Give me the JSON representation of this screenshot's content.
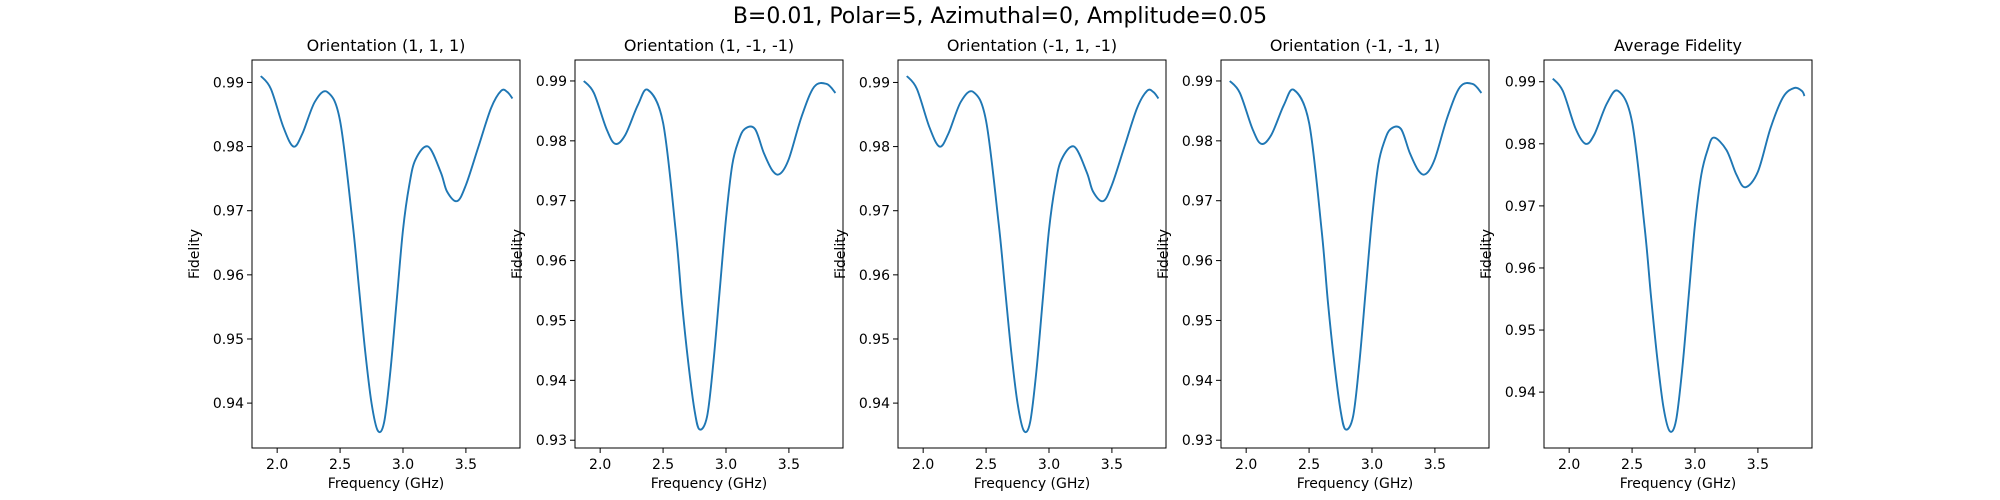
{
  "figure": {
    "suptitle": "B=0.01, Polar=5, Azimuthal=0, Amplitude=0.05",
    "line_color": "#1f77b4"
  },
  "chart_data": [
    {
      "type": "line",
      "title": "Orientation (1, 1, 1)",
      "xlabel": "Frequency (GHz)",
      "ylabel": "Fidelity",
      "xlim": [
        1.8,
        3.93
      ],
      "ylim": [
        0.933,
        0.9935
      ],
      "xticks": [
        "2.0",
        "2.5",
        "3.0",
        "3.5"
      ],
      "yticks": [
        "0.94",
        "0.95",
        "0.96",
        "0.97",
        "0.98",
        "0.99"
      ],
      "series": [
        {
          "x": [
            1.87,
            1.95,
            2.05,
            2.13,
            2.2,
            2.3,
            2.4,
            2.5,
            2.6,
            2.65,
            2.7,
            2.75,
            2.8,
            2.85,
            2.9,
            2.95,
            3.0,
            3.05,
            3.1,
            3.2,
            3.3,
            3.35,
            3.43,
            3.5,
            3.6,
            3.7,
            3.78,
            3.83,
            3.87
          ],
          "y": [
            0.991,
            0.989,
            0.983,
            0.98,
            0.982,
            0.987,
            0.9885,
            0.984,
            0.968,
            0.958,
            0.948,
            0.94,
            0.9357,
            0.937,
            0.945,
            0.956,
            0.967,
            0.974,
            0.978,
            0.98,
            0.976,
            0.973,
            0.9715,
            0.974,
            0.98,
            0.986,
            0.9887,
            0.9885,
            0.9875
          ]
        }
      ]
    },
    {
      "type": "line",
      "title": "Orientation (1, -1, -1)",
      "xlabel": "Frequency (GHz)",
      "ylabel": "Fidelity",
      "xlim": [
        1.8,
        3.93
      ],
      "ylim": [
        0.9287,
        0.9935
      ],
      "xticks": [
        "2.0",
        "2.5",
        "3.0",
        "3.5"
      ],
      "yticks": [
        "0.93",
        "0.94",
        "0.95",
        "0.96",
        "0.97",
        "0.98",
        "0.99"
      ],
      "series": [
        {
          "x": [
            1.87,
            1.95,
            2.05,
            2.12,
            2.2,
            2.3,
            2.38,
            2.5,
            2.6,
            2.65,
            2.7,
            2.75,
            2.79,
            2.85,
            2.9,
            2.95,
            3.0,
            3.05,
            3.1,
            3.15,
            3.23,
            3.3,
            3.37,
            3.43,
            3.5,
            3.6,
            3.7,
            3.8,
            3.87
          ],
          "y": [
            0.99,
            0.988,
            0.982,
            0.9795,
            0.981,
            0.986,
            0.9885,
            0.983,
            0.965,
            0.953,
            0.943,
            0.935,
            0.9318,
            0.934,
            0.943,
            0.955,
            0.967,
            0.976,
            0.98,
            0.982,
            0.982,
            0.978,
            0.975,
            0.9745,
            0.977,
            0.984,
            0.989,
            0.9895,
            0.988
          ]
        }
      ]
    },
    {
      "type": "line",
      "title": "Orientation (-1, 1, -1)",
      "xlabel": "Frequency (GHz)",
      "ylabel": "Fidelity",
      "xlim": [
        1.8,
        3.93
      ],
      "ylim": [
        0.933,
        0.9935
      ],
      "xticks": [
        "2.0",
        "2.5",
        "3.0",
        "3.5"
      ],
      "yticks": [
        "0.94",
        "0.95",
        "0.96",
        "0.97",
        "0.98",
        "0.99"
      ],
      "series": [
        {
          "x": [
            1.87,
            1.95,
            2.05,
            2.13,
            2.2,
            2.3,
            2.4,
            2.5,
            2.6,
            2.65,
            2.7,
            2.75,
            2.8,
            2.85,
            2.9,
            2.95,
            3.0,
            3.05,
            3.1,
            3.2,
            3.3,
            3.35,
            3.43,
            3.5,
            3.6,
            3.7,
            3.78,
            3.83,
            3.87
          ],
          "y": [
            0.991,
            0.989,
            0.983,
            0.98,
            0.982,
            0.987,
            0.9885,
            0.984,
            0.968,
            0.958,
            0.948,
            0.94,
            0.9357,
            0.937,
            0.945,
            0.956,
            0.967,
            0.974,
            0.978,
            0.98,
            0.976,
            0.973,
            0.9715,
            0.974,
            0.98,
            0.986,
            0.9887,
            0.9885,
            0.9875
          ]
        }
      ]
    },
    {
      "type": "line",
      "title": "Orientation (-1, -1, 1)",
      "xlabel": "Frequency (GHz)",
      "ylabel": "Fidelity",
      "xlim": [
        1.8,
        3.93
      ],
      "ylim": [
        0.9287,
        0.9935
      ],
      "xticks": [
        "2.0",
        "2.5",
        "3.0",
        "3.5"
      ],
      "yticks": [
        "0.93",
        "0.94",
        "0.95",
        "0.96",
        "0.97",
        "0.98",
        "0.99"
      ],
      "series": [
        {
          "x": [
            1.87,
            1.95,
            2.05,
            2.12,
            2.2,
            2.3,
            2.38,
            2.5,
            2.6,
            2.65,
            2.7,
            2.75,
            2.79,
            2.85,
            2.9,
            2.95,
            3.0,
            3.05,
            3.1,
            3.15,
            3.23,
            3.3,
            3.37,
            3.43,
            3.5,
            3.6,
            3.7,
            3.8,
            3.87
          ],
          "y": [
            0.99,
            0.988,
            0.982,
            0.9795,
            0.981,
            0.986,
            0.9885,
            0.983,
            0.965,
            0.953,
            0.943,
            0.935,
            0.9318,
            0.934,
            0.943,
            0.955,
            0.967,
            0.976,
            0.98,
            0.982,
            0.982,
            0.978,
            0.975,
            0.9745,
            0.977,
            0.984,
            0.989,
            0.9895,
            0.988
          ]
        }
      ]
    },
    {
      "type": "line",
      "title": "Average Fidelity",
      "xlabel": "Frequency (GHz)",
      "ylabel": "Fidelity",
      "xlim": [
        1.8,
        3.93
      ],
      "ylim": [
        0.931,
        0.9935
      ],
      "xticks": [
        "2.0",
        "2.5",
        "3.0",
        "3.5"
      ],
      "yticks": [
        "0.94",
        "0.95",
        "0.96",
        "0.97",
        "0.98",
        "0.99"
      ],
      "series": [
        {
          "x": [
            1.87,
            1.95,
            2.05,
            2.13,
            2.2,
            2.3,
            2.39,
            2.5,
            2.6,
            2.65,
            2.7,
            2.75,
            2.8,
            2.85,
            2.9,
            2.95,
            3.0,
            3.05,
            3.1,
            3.15,
            3.25,
            3.33,
            3.4,
            3.5,
            3.6,
            3.7,
            3.79,
            3.85,
            3.87
          ],
          "y": [
            0.9905,
            0.9885,
            0.9825,
            0.98,
            0.9815,
            0.9865,
            0.9885,
            0.9835,
            0.9665,
            0.9555,
            0.9455,
            0.9375,
            0.9337,
            0.9355,
            0.944,
            0.9555,
            0.967,
            0.975,
            0.979,
            0.981,
            0.979,
            0.975,
            0.973,
            0.9755,
            0.9825,
            0.9875,
            0.989,
            0.9885,
            0.9877
          ]
        }
      ]
    }
  ]
}
